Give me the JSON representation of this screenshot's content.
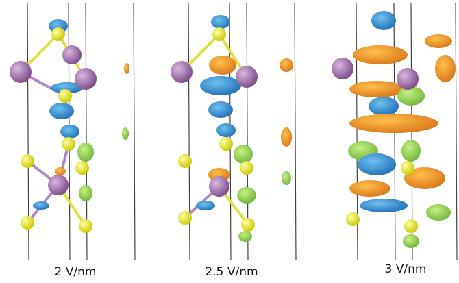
{
  "panels": [
    {
      "label": "2 V/nm"
    },
    {
      "label": "2.5 V/nm"
    },
    {
      "label": "3 V/nm"
    }
  ]
}
